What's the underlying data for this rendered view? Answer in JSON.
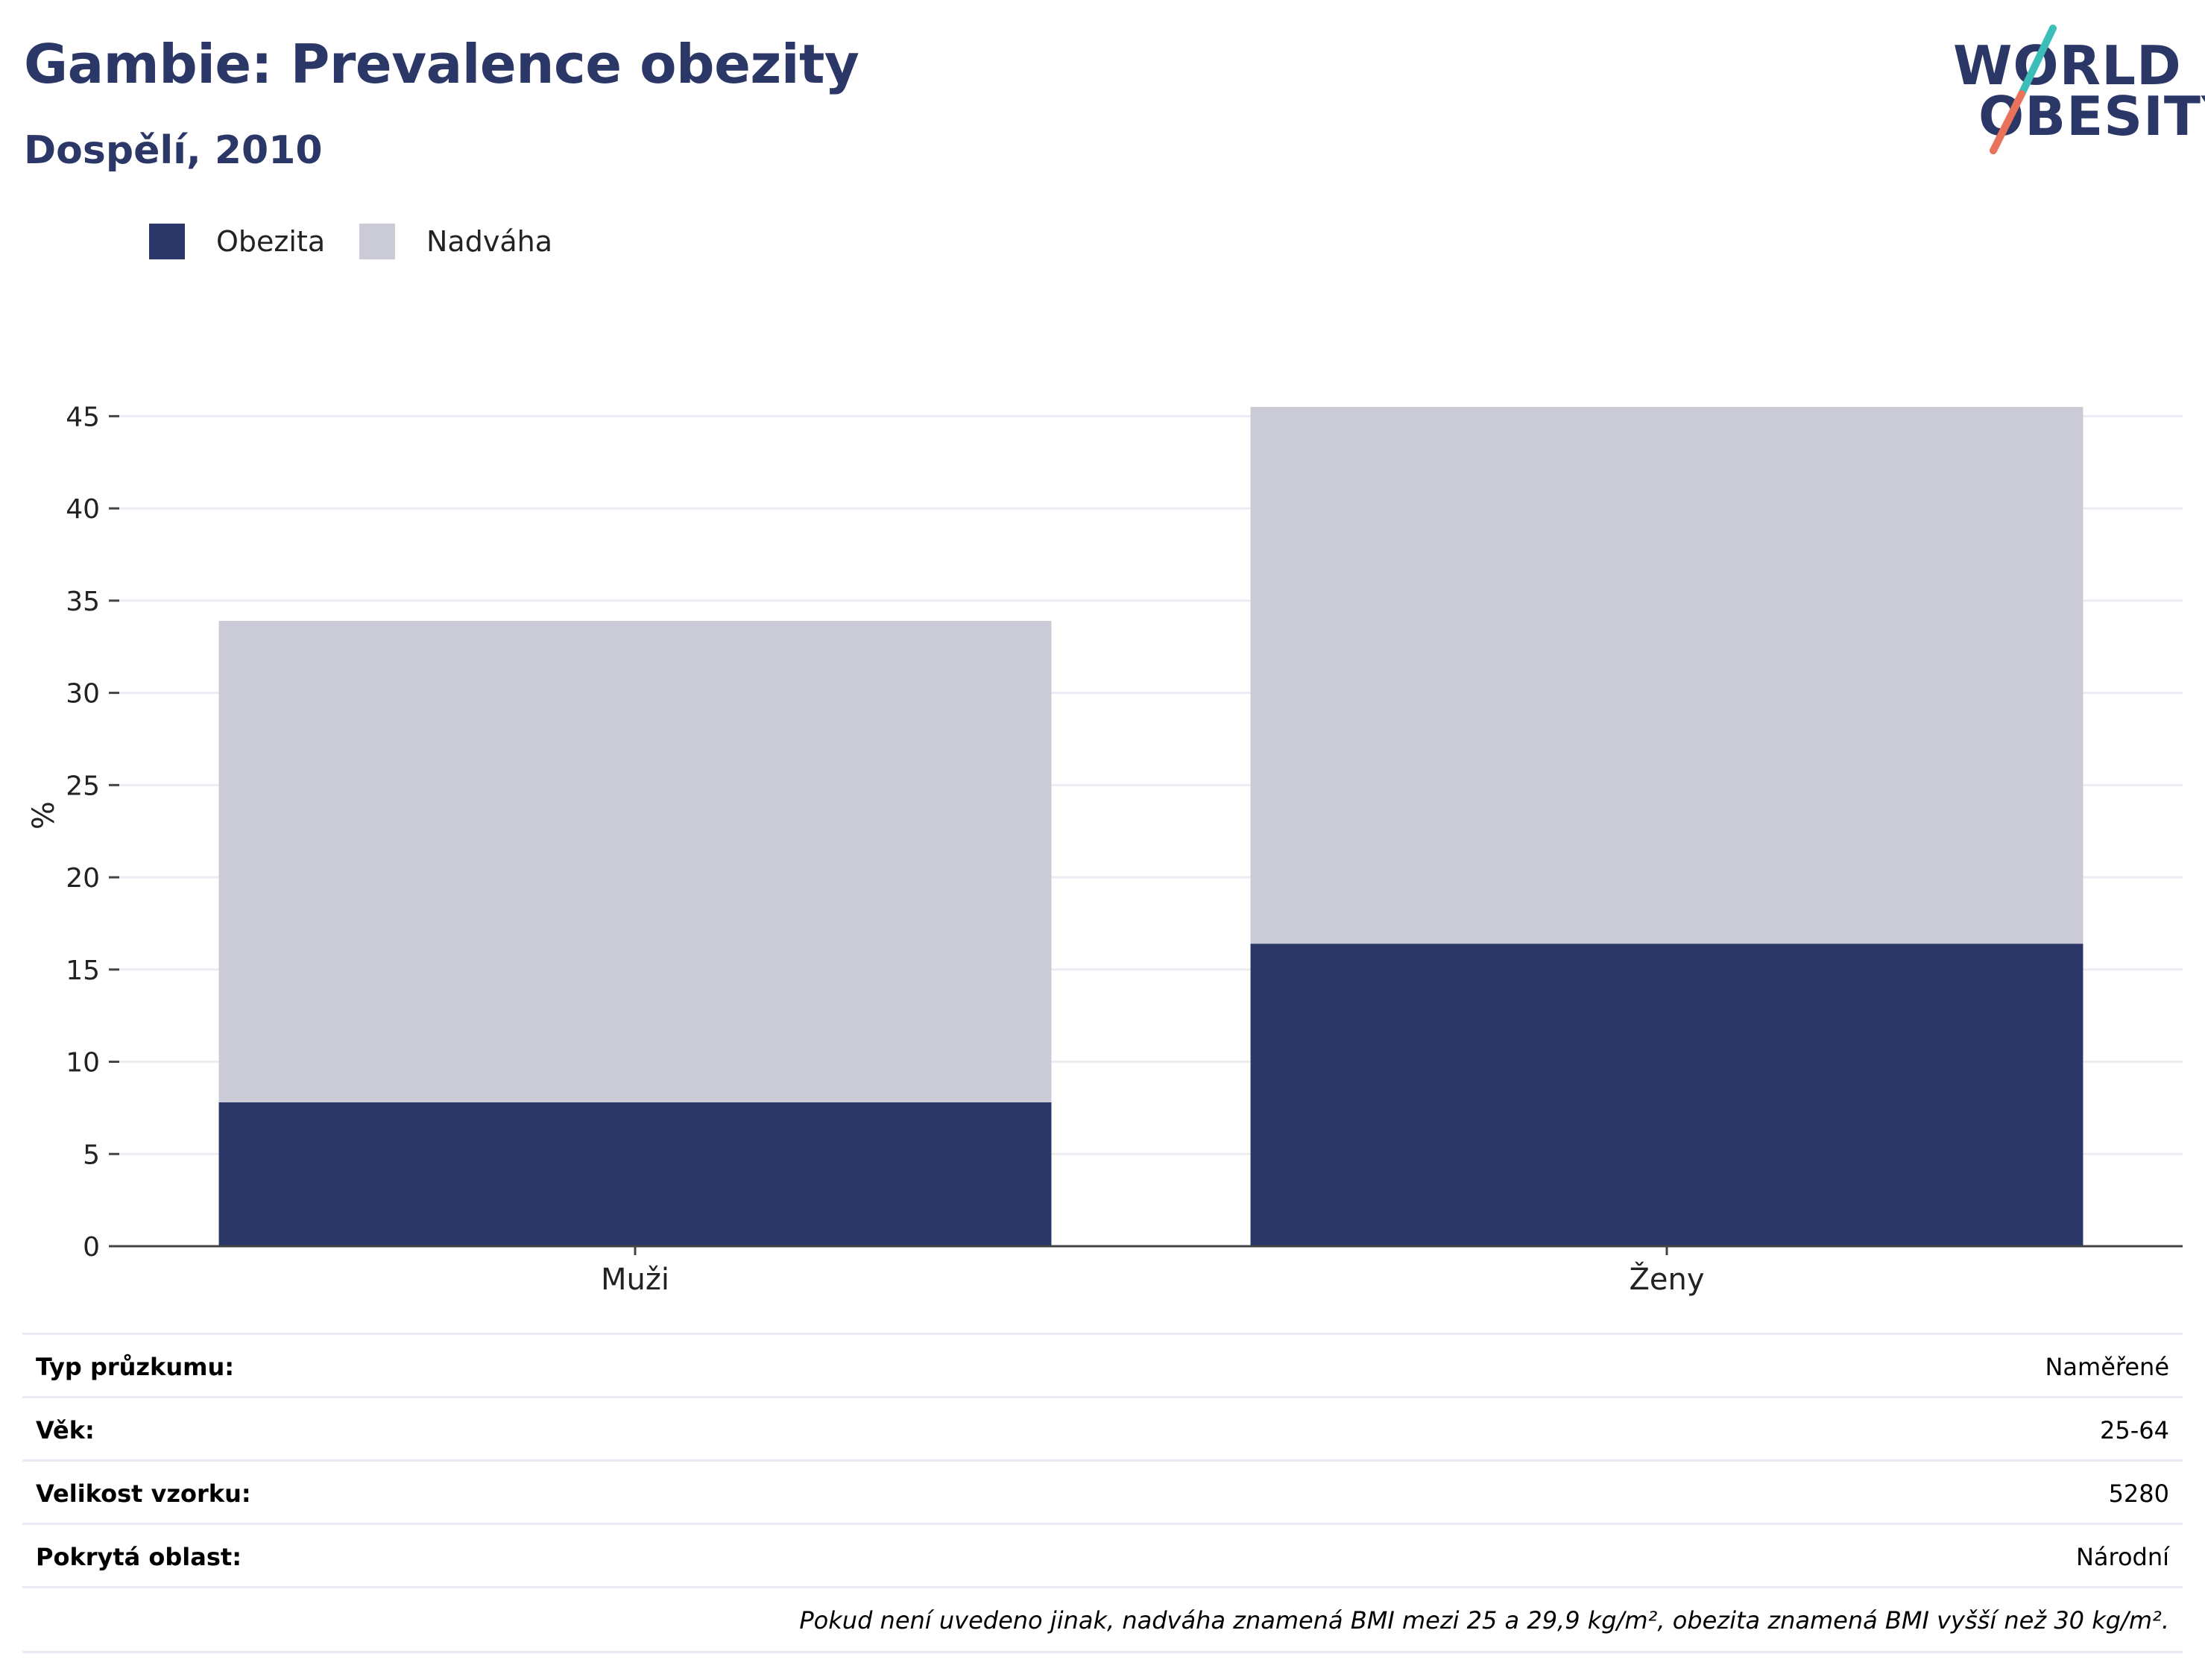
{
  "header": {
    "title": "Gambie: Prevalence obezity",
    "subtitle": "Dospělí, 2010"
  },
  "logo": {
    "line1": "WORLD",
    "line2": "OBESITY",
    "colors": {
      "text": "#2b3766",
      "slash_teal": "#3dbdb8",
      "slash_coral": "#e8735a"
    }
  },
  "legend": [
    {
      "label": "Obezita",
      "color": "#2b3766"
    },
    {
      "label": "Nadváha",
      "color": "#cacbd6"
    }
  ],
  "chart_data": {
    "type": "bar",
    "stacked": true,
    "categories": [
      "Muži",
      "Ženy"
    ],
    "series": [
      {
        "name": "Obezita",
        "values": [
          7.8,
          16.4
        ],
        "color": "#2b3766"
      },
      {
        "name": "Nadváha",
        "values": [
          26.1,
          29.1
        ],
        "color": "#cacbd6"
      }
    ],
    "ylabel": "%",
    "ylim": [
      0,
      45.5
    ],
    "yticks": [
      0,
      5,
      10,
      15,
      20,
      25,
      30,
      35,
      40,
      45
    ],
    "grid": true,
    "legend_position": "top-left"
  },
  "info": {
    "rows": [
      {
        "label": "Typ průzkumu:",
        "value": "Naměřené"
      },
      {
        "label": "Věk:",
        "value": "25-64"
      },
      {
        "label": "Velikost vzorku:",
        "value": "5280"
      },
      {
        "label": "Pokrytá oblast:",
        "value": "Národní"
      }
    ],
    "note": "Pokud není uvedeno jinak, nadváha znamená BMI mezi 25 a 29,9 kg/m², obezita znamená BMI vyšší než 30 kg/m²."
  }
}
